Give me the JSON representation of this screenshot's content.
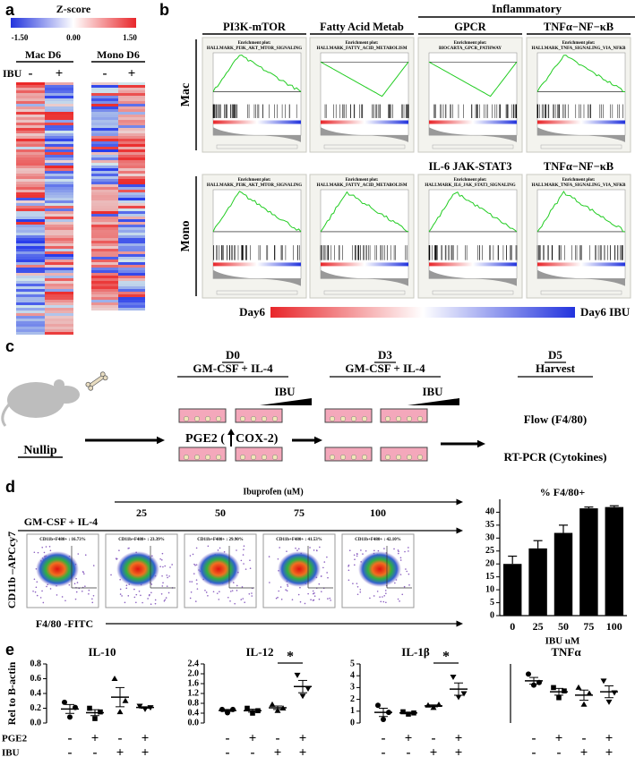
{
  "panels": [
    "a",
    "b",
    "c",
    "d",
    "e"
  ],
  "heatmap": {
    "title": "Z-score",
    "scale": [
      "-1.50",
      "0.00",
      "1.50"
    ],
    "row_label": "IBU",
    "groups": [
      {
        "name": "Mac D6",
        "ibu": [
          "-",
          "+"
        ]
      },
      {
        "name": "Mono D6",
        "ibu": [
          "-",
          "+"
        ]
      }
    ]
  },
  "gsea": {
    "group": "Inflammatory",
    "legend": [
      "Day6",
      "Day6 IBU"
    ],
    "rows": [
      {
        "label": "Mac",
        "plots": [
          {
            "heading": "PI3K-mTOR",
            "subtitle": "Enrichment plot:",
            "name": "HALLMARK_PI3K_AKT_MTOR_SIGNALING"
          },
          {
            "heading": "Fatty Acid Metab",
            "subtitle": "Enrichment plot:",
            "name": "HALLMARK_FATTY_ACID_METABOLISM"
          },
          {
            "heading": "GPCR",
            "subtitle": "Enrichment plot:",
            "name": "BIOCARTA_GPCR_PATHWAY"
          },
          {
            "heading": "TNFα−NF−κB",
            "subtitle": "Enrichment plot:",
            "name": "HALLMARK_TNFA_SIGNALING_VIA_NFKB"
          }
        ]
      },
      {
        "label": "Mono",
        "plots": [
          {
            "subtitle": "Enrichment plot:",
            "name": "HALLMARK_PI3K_AKT_MTOR_SIGNALING"
          },
          {
            "subtitle": "Enrichment plot:",
            "name": "HALLMARK_FATTY_ACID_METABOLISM"
          },
          {
            "heading": "IL-6 JAK-STAT3",
            "subtitle": "Enrichment plot:",
            "name": "HALLMARK_IL6_JAK_STAT3_SIGNALING"
          },
          {
            "heading": "TNFα−NF−κB",
            "subtitle": "Enrichment plot:",
            "name": "HALLMARK_TNFA_SIGNALING_VIA_NFKB"
          }
        ]
      }
    ]
  },
  "schema": {
    "start": "Nullip",
    "steps": [
      {
        "day": "D0",
        "media": "GM-CSF + IL-4",
        "drug": "IBU",
        "note": "PGE2 (",
        "note2": "COX-2)"
      },
      {
        "day": "D3",
        "media": "GM-CSF + IL-4",
        "drug": "IBU"
      }
    ],
    "harvest": {
      "day": "D5",
      "label": "Harvest",
      "assays": [
        "Flow (F4/80)",
        "RT-PCR (Cytokines)"
      ]
    }
  },
  "flow": {
    "title": "Ibuprofen (uM)",
    "doses": [
      "25",
      "50",
      "75",
      "100"
    ],
    "media": "GM-CSF + IL-4",
    "y_label": "CD11b –APCcy7",
    "x_label": "F4/80 -FITC",
    "gates": [
      "CD11b+F480+ : 16.73%",
      "CD11b+F480+ : 23.39%",
      "CD11b+F480+ : 29.90%",
      "CD11b+F480+ : 41.53%",
      "CD11b+F480+ : 42.10%"
    ]
  },
  "conditions": {
    "y_label": "Rel to B-actin",
    "rows": [
      {
        "name": "PGE2",
        "signs": [
          "-",
          "+",
          "-",
          "+"
        ]
      },
      {
        "name": "IBU",
        "signs": [
          "-",
          "-",
          "+",
          "+"
        ]
      }
    ]
  },
  "chart_data": [
    {
      "type": "bar",
      "title": "% F4/80+",
      "xlabel": "IBU uM",
      "categories": [
        "0",
        "25",
        "50",
        "75",
        "100"
      ],
      "values": [
        20,
        26,
        32,
        41.5,
        42
      ],
      "errors": [
        3,
        3,
        3,
        0.5,
        0.5
      ],
      "color": "#000000",
      "ylim": [
        0,
        45
      ],
      "yticks": [
        0,
        5,
        10,
        15,
        20,
        25,
        30,
        35,
        40
      ]
    },
    {
      "type": "dot",
      "title": "IL-10",
      "values": [
        0.19,
        0.14,
        0.35,
        0.21
      ],
      "errors": [
        0.06,
        0.04,
        0.13,
        0.01
      ],
      "points": [
        [
          0.28,
          0.08,
          0.21
        ],
        [
          0.2,
          0.06,
          0.15
        ],
        [
          0.6,
          0.15,
          0.3
        ],
        [
          0.23,
          0.19,
          0.21
        ]
      ],
      "ylim": [
        0,
        0.8
      ],
      "yticks": [
        {
          "value": 0,
          "label": "0.0"
        },
        0.2,
        0.4,
        0.6,
        0.8
      ]
    },
    {
      "type": "dot",
      "title": "IL-12",
      "values": [
        0.51,
        0.5,
        0.62,
        1.48
      ],
      "errors": [
        0.04,
        0.06,
        0.07,
        0.25
      ],
      "points": [
        [
          0.55,
          0.42,
          0.55
        ],
        [
          0.6,
          0.4,
          0.5
        ],
        [
          0.75,
          0.5,
          0.6
        ],
        [
          1.95,
          1.1,
          1.4
        ]
      ],
      "annotation": "*",
      "ylim": [
        0,
        2.4
      ],
      "yticks": [
        {
          "value": 0,
          "label": "0.0"
        },
        0.4,
        0.8,
        1.2,
        1.6,
        {
          "value": 2,
          "label": "2.0"
        },
        2.4
      ]
    },
    {
      "type": "dot",
      "title": "IL-1β",
      "values": [
        0.9,
        0.85,
        1.45,
        2.87
      ],
      "errors": [
        0.35,
        0.06,
        0.08,
        0.52
      ],
      "points": [
        [
          1.5,
          0.3,
          0.9
        ],
        [
          0.95,
          0.75,
          0.85
        ],
        [
          1.5,
          1.3,
          1.55
        ],
        [
          3.9,
          2.2,
          2.5
        ]
      ],
      "annotation": "*",
      "ylim": [
        0,
        5
      ],
      "yticks": [
        0,
        1,
        2,
        3,
        4,
        5
      ]
    },
    {
      "type": "dot",
      "title": "TNFα",
      "values": [
        0.5,
        0.37,
        0.33,
        0.37
      ],
      "errors": [
        0.04,
        0.04,
        0.06,
        0.07
      ],
      "points": [
        [
          0.58,
          0.45,
          0.48
        ],
        [
          0.42,
          0.3,
          0.38
        ],
        [
          0.42,
          0.22,
          0.35
        ],
        [
          0.5,
          0.25,
          0.36
        ]
      ],
      "ylim": [
        0,
        0.7
      ]
    }
  ]
}
